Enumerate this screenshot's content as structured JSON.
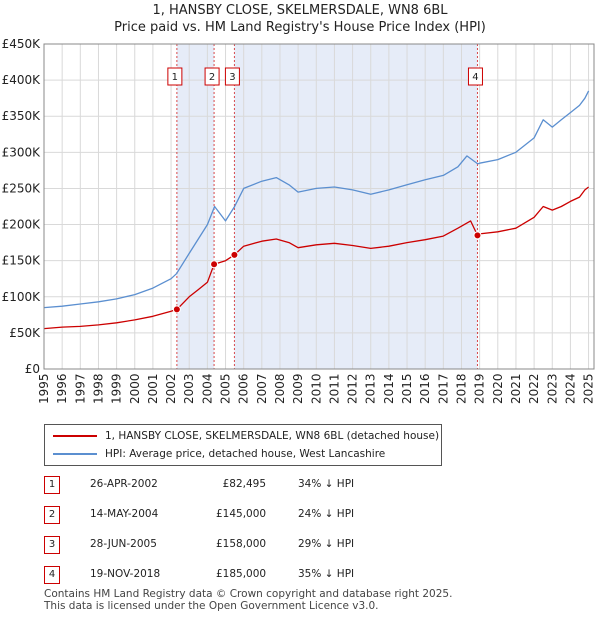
{
  "title": {
    "line1": "1, HANSBY CLOSE, SKELMERSDALE, WN8 6BL",
    "line2": "Price paid vs. HM Land Registry's House Price Index (HPI)"
  },
  "colors": {
    "red": "#cc0000",
    "blue": "#5b8fd0",
    "shade": "#e6ecf8",
    "grid": "#d9d9d9"
  },
  "legend": {
    "red_label": "1, HANSBY CLOSE, SKELMERSDALE, WN8 6BL (detached house)",
    "blue_label": "HPI: Average price, detached house, West Lancashire"
  },
  "transactions": [
    {
      "num": "1",
      "date": "26-APR-2002",
      "price": "£82,495",
      "hpi": "34% ↓ HPI"
    },
    {
      "num": "2",
      "date": "14-MAY-2004",
      "price": "£145,000",
      "hpi": "24% ↓ HPI"
    },
    {
      "num": "3",
      "date": "28-JUN-2005",
      "price": "£158,000",
      "hpi": "29% ↓ HPI"
    },
    {
      "num": "4",
      "date": "19-NOV-2018",
      "price": "£185,000",
      "hpi": "35% ↓ HPI"
    }
  ],
  "footer": {
    "line1": "Contains HM Land Registry data © Crown copyright and database right 2025.",
    "line2": "This data is licensed under the Open Government Licence v3.0."
  },
  "chart_data": {
    "type": "line",
    "title": "1, HANSBY CLOSE, SKELMERSDALE, WN8 6BL — Price paid vs. HM Land Registry's House Price Index (HPI)",
    "xlim": [
      1995,
      2025.3
    ],
    "ylim": [
      0,
      450000
    ],
    "y_ticks": [
      0,
      50000,
      100000,
      150000,
      200000,
      250000,
      300000,
      350000,
      400000,
      450000
    ],
    "y_tick_labels": [
      "£0",
      "£50K",
      "£100K",
      "£150K",
      "£200K",
      "£250K",
      "£300K",
      "£350K",
      "£400K",
      "£450K"
    ],
    "x_ticks": [
      1995,
      1996,
      1997,
      1998,
      1999,
      2000,
      2001,
      2002,
      2003,
      2004,
      2005,
      2006,
      2007,
      2008,
      2009,
      2010,
      2011,
      2012,
      2013,
      2014,
      2015,
      2016,
      2017,
      2018,
      2019,
      2020,
      2021,
      2022,
      2023,
      2024,
      2025
    ],
    "grid": true,
    "series": [
      {
        "name": "HPI: Average price, detached house, West Lancashire",
        "color": "#5b8fd0",
        "x": [
          1995,
          1996,
          1997,
          1998,
          1999,
          2000,
          2001,
          2002,
          2002.3,
          2003,
          2003.5,
          2004,
          2004.4,
          2005,
          2005.5,
          2006,
          2007,
          2007.8,
          2008.5,
          2009,
          2010,
          2011,
          2012,
          2013,
          2014,
          2015,
          2016,
          2017,
          2017.8,
          2018.3,
          2018.9,
          2019,
          2020,
          2021,
          2022,
          2022.5,
          2023,
          2023.5,
          2024,
          2024.5,
          2024.8,
          2025
        ],
        "values": [
          85000,
          87000,
          90000,
          93000,
          97000,
          103000,
          112000,
          125000,
          132000,
          160000,
          180000,
          200000,
          225000,
          205000,
          225000,
          250000,
          260000,
          265000,
          255000,
          245000,
          250000,
          252000,
          248000,
          242000,
          248000,
          255000,
          262000,
          268000,
          280000,
          295000,
          284000,
          285000,
          290000,
          300000,
          320000,
          345000,
          335000,
          345000,
          355000,
          365000,
          375000,
          385000
        ]
      },
      {
        "name": "1, HANSBY CLOSE, SKELMERSDALE, WN8 6BL (detached house)",
        "color": "#cc0000",
        "x": [
          1995,
          1996,
          1997,
          1998,
          1999,
          2000,
          2001,
          2002,
          2002.32,
          2003,
          2003.5,
          2004,
          2004.37,
          2005,
          2005.49,
          2006,
          2007,
          2007.8,
          2008.5,
          2009,
          2010,
          2011,
          2012,
          2013,
          2014,
          2015,
          2016,
          2017,
          2017.8,
          2018.5,
          2018.88,
          2019,
          2020,
          2021,
          2022,
          2022.5,
          2023,
          2023.5,
          2024,
          2024.5,
          2024.8,
          2025
        ],
        "values": [
          56000,
          58000,
          59000,
          61000,
          64000,
          68000,
          73000,
          80000,
          82495,
          100000,
          110000,
          120000,
          145000,
          150000,
          158000,
          170000,
          177000,
          180000,
          175000,
          168000,
          172000,
          174000,
          171000,
          167000,
          170000,
          175000,
          179000,
          184000,
          195000,
          205000,
          185000,
          187000,
          190000,
          195000,
          210000,
          225000,
          220000,
          225000,
          232000,
          238000,
          248000,
          252000
        ]
      }
    ],
    "sales": [
      {
        "num": "1",
        "x": 2002.32,
        "price": 82495
      },
      {
        "num": "2",
        "x": 2004.37,
        "price": 145000
      },
      {
        "num": "3",
        "x": 2005.49,
        "price": 158000
      },
      {
        "num": "4",
        "x": 2018.88,
        "price": 185000
      }
    ]
  }
}
